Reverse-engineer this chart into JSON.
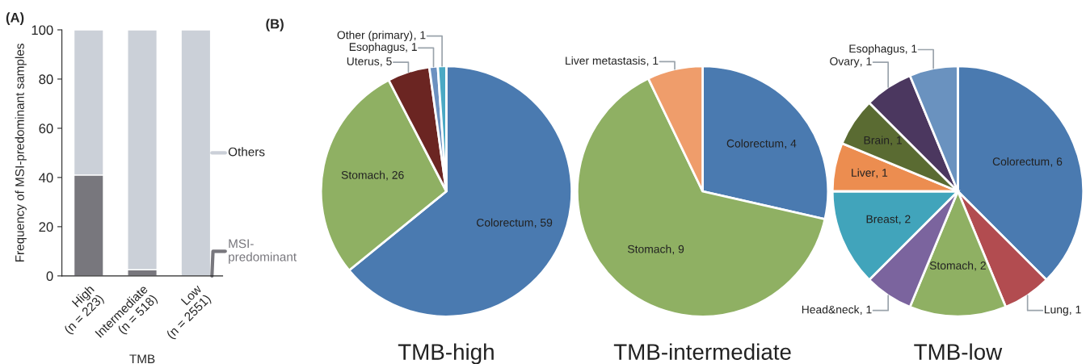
{
  "chart_data": [
    {
      "type": "bar",
      "stacked": true,
      "xlabel": "TMB",
      "ylabel": "Frequency of MSI-predominant samples",
      "categories": [
        "High\n(n = 223)",
        "Intermediate\n(n = 518)",
        "Low\n(n = 2551)"
      ],
      "ylim": [
        0,
        100
      ],
      "yticks": [
        0,
        20,
        40,
        60,
        80,
        100
      ],
      "legend": "right",
      "grid": false,
      "annotations": [
        "(A)"
      ],
      "series": [
        {
          "name": "MSI-\npredominant",
          "color": "#78777d",
          "values": [
            41,
            2.5,
            0
          ]
        },
        {
          "name": "Others",
          "color": "#cbd0d8",
          "values": [
            59,
            97.5,
            100
          ]
        }
      ]
    },
    {
      "type": "pie",
      "title": "TMB-high",
      "annotations": [
        "(B)"
      ],
      "categories": [
        "Colorectum",
        "Stomach",
        "Uterus",
        "Esophagus",
        "Other (primary)"
      ],
      "values": [
        59,
        26,
        5,
        1,
        1
      ],
      "value_labels": [
        ", 59",
        ", 26",
        ", 5",
        ", 1",
        ", 1"
      ],
      "colors": [
        "#4a7ab0",
        "#8fb063",
        "#6b2522",
        "#6c91c0",
        "#4aa9c4"
      ]
    },
    {
      "type": "pie",
      "title": "TMB-intermediate",
      "categories": [
        "Colorectum",
        "Stomach",
        "Liver metastasis"
      ],
      "values": [
        4,
        9,
        1
      ],
      "value_labels": [
        ", 4",
        ", 9",
        ", 1"
      ],
      "colors": [
        "#4a7ab0",
        "#8fb063",
        "#ef9d6b"
      ]
    },
    {
      "type": "pie",
      "title": "TMB-low",
      "categories": [
        "Colorectum",
        "Lung",
        "Stomach",
        "Head&neck",
        "Breast",
        "Liver",
        "Brain",
        "Ovary",
        "Esophagus"
      ],
      "values": [
        6,
        1,
        2,
        1,
        2,
        1,
        1,
        1,
        1
      ],
      "value_labels": [
        ", 6",
        ", 1",
        ", 2",
        ", 1",
        ", 2",
        ", 1",
        ", 1",
        ", 1",
        ", 1"
      ],
      "colors": [
        "#4a7ab0",
        "#b24c50",
        "#8fb063",
        "#7b649e",
        "#41a4bb",
        "#ec8d50",
        "#5a6b32",
        "#4b375f",
        "#6a92bf"
      ]
    }
  ]
}
